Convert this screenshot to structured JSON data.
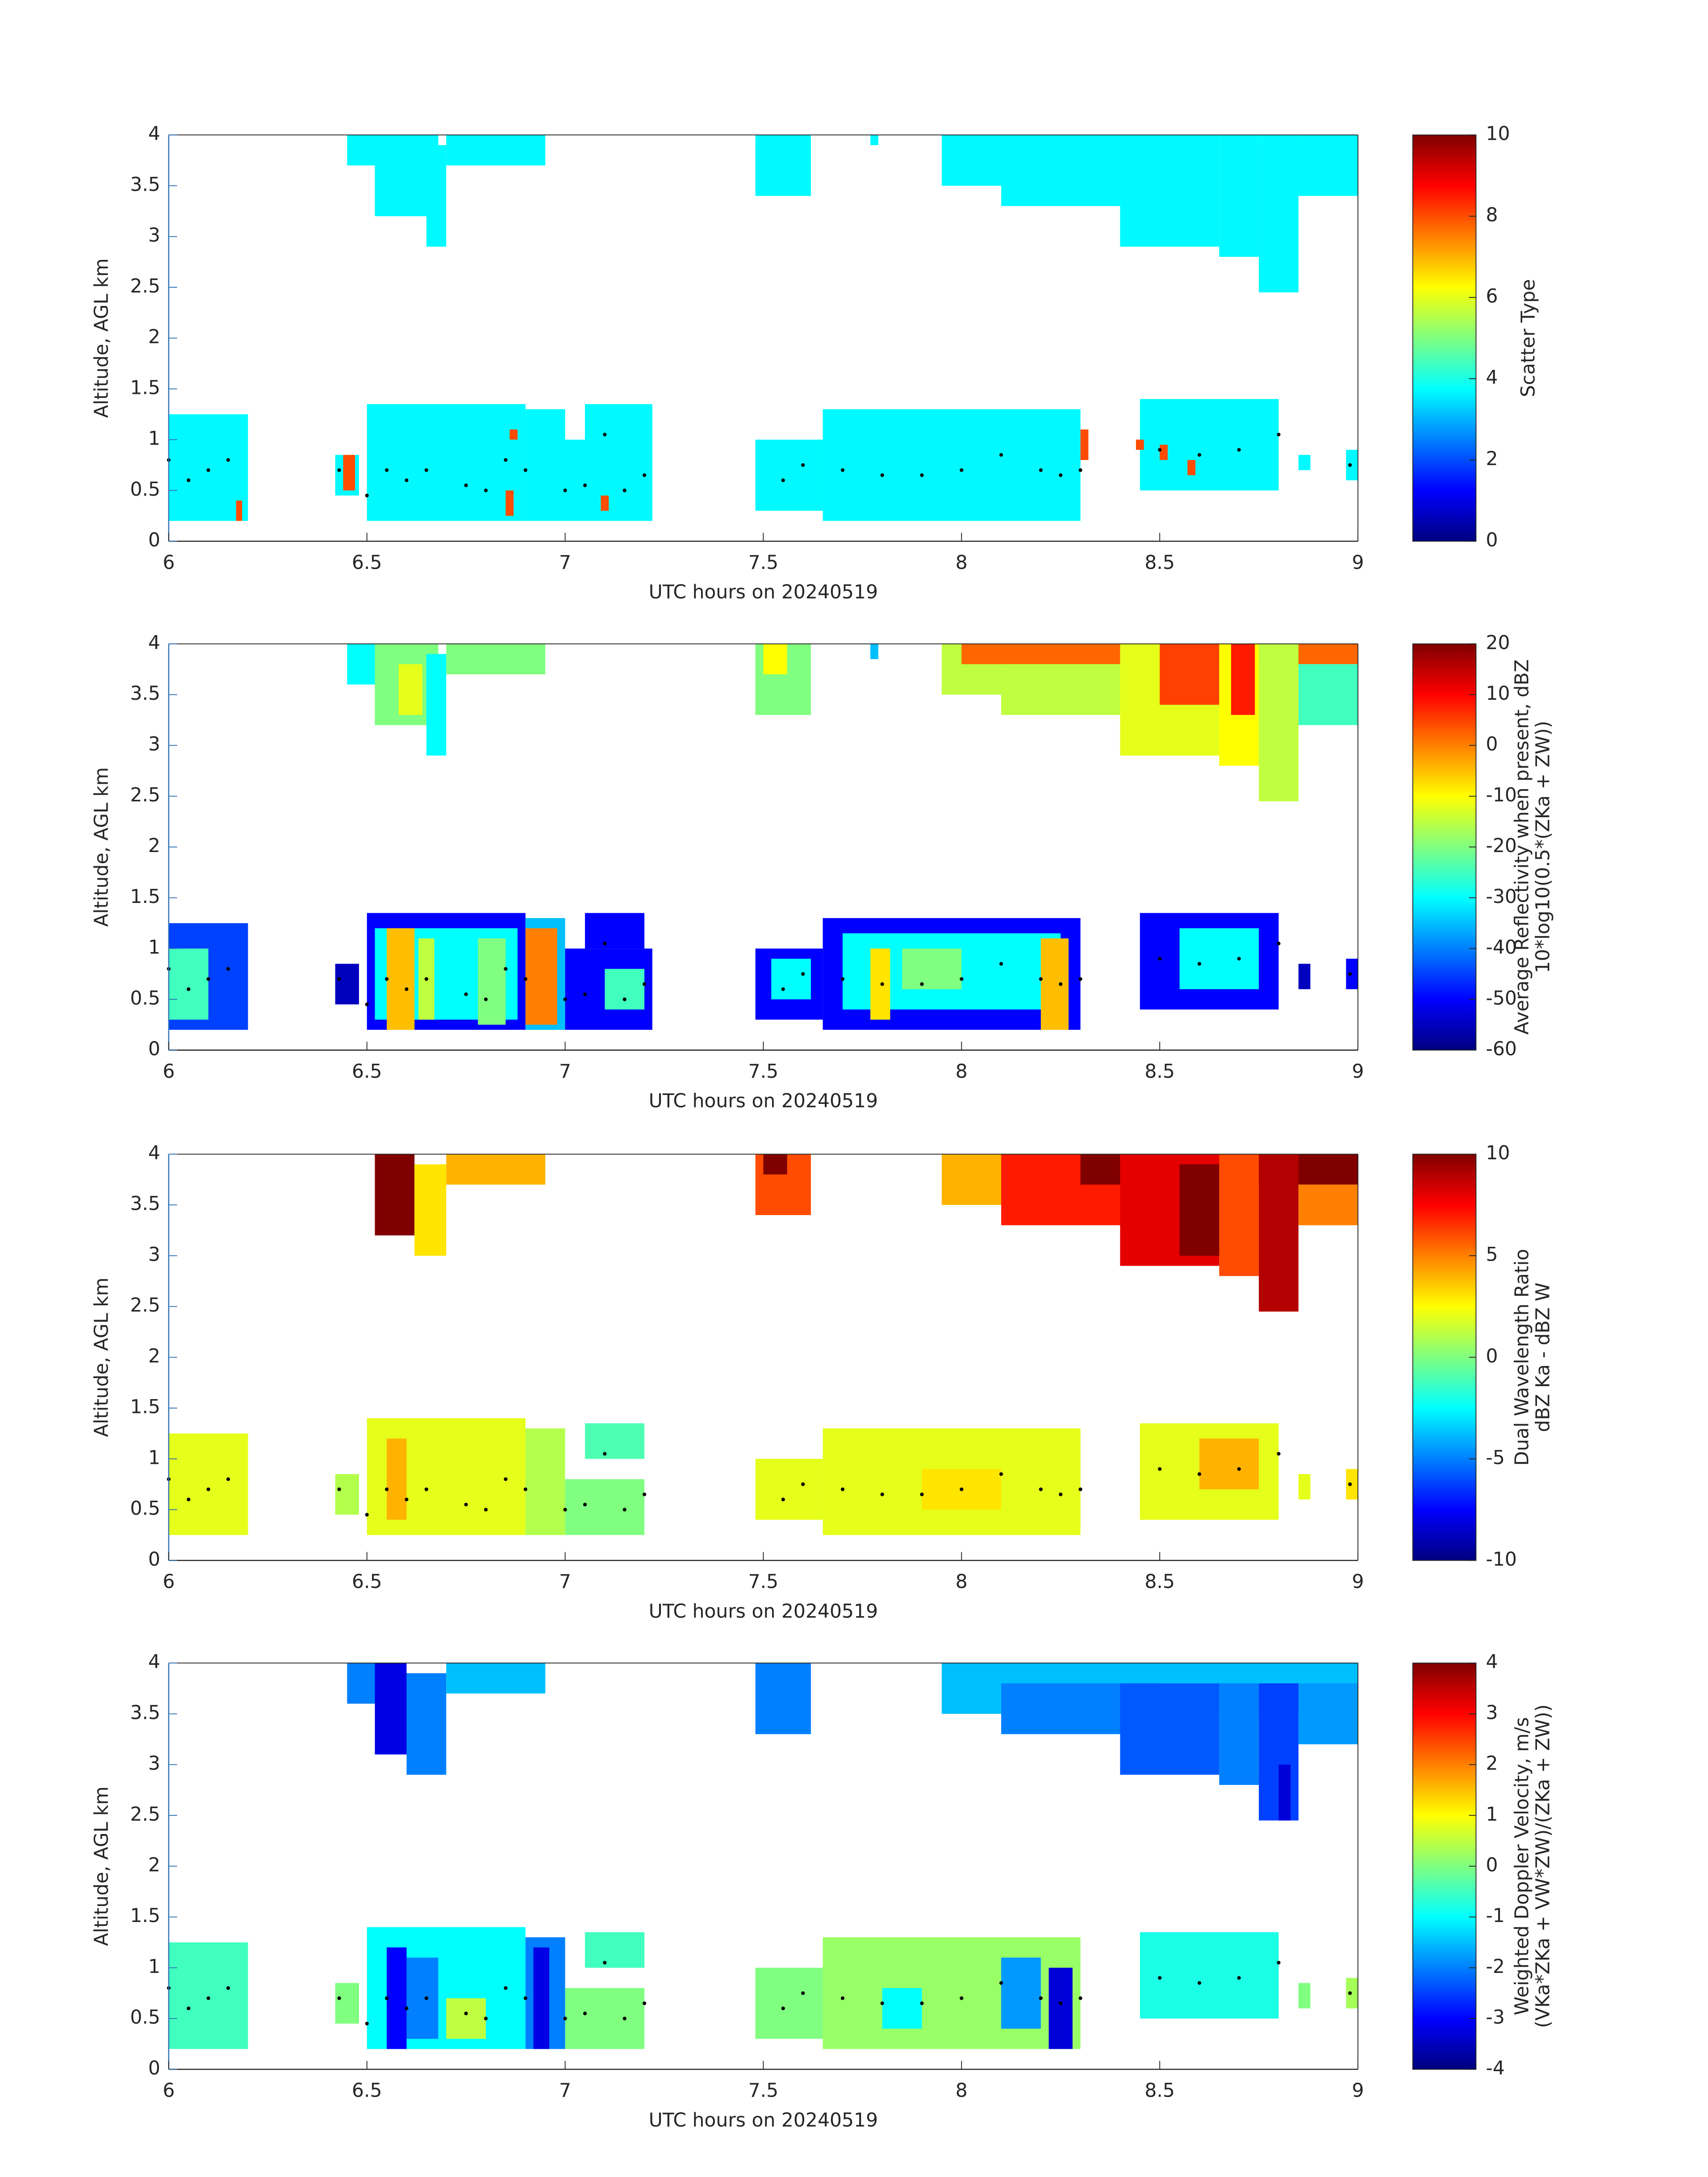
{
  "chart_data": [
    {
      "type": "heatmap",
      "xlabel": "UTC hours on 20240519",
      "ylabel": "Altitude, AGL km",
      "colorbar_label": [
        "Scatter Type"
      ],
      "colormap": "jet",
      "clim": [
        0,
        10
      ],
      "cticks": [
        0,
        2,
        4,
        6,
        8,
        10
      ],
      "xlim": [
        6,
        9
      ],
      "xticks": [
        6,
        6.5,
        7,
        7.5,
        8,
        8.5,
        9
      ],
      "ylim": [
        0,
        4
      ],
      "yticks": [
        0,
        0.5,
        1,
        1.5,
        2,
        2.5,
        3,
        3.5,
        4
      ],
      "regions": [
        [
          6.45,
          6.55,
          3.7,
          4,
          3.7
        ],
        [
          6.52,
          6.68,
          3.2,
          4,
          3.7
        ],
        [
          6.65,
          6.7,
          2.9,
          3.9,
          3.7
        ],
        [
          6.7,
          6.95,
          3.7,
          4,
          3.7
        ],
        [
          7.48,
          7.62,
          3.4,
          4,
          3.7
        ],
        [
          7.77,
          7.79,
          3.9,
          4,
          3.7
        ],
        [
          7.95,
          8.4,
          3.5,
          4,
          3.7
        ],
        [
          8.1,
          8.5,
          3.3,
          4,
          3.7
        ],
        [
          8.4,
          8.65,
          2.9,
          4,
          3.7
        ],
        [
          8.65,
          8.75,
          2.8,
          4,
          3.7
        ],
        [
          8.75,
          8.85,
          2.45,
          4,
          3.7
        ],
        [
          8.85,
          9,
          3.4,
          4,
          3.7
        ],
        [
          6,
          6.2,
          0.2,
          1.25,
          3.7
        ],
        [
          6.42,
          6.48,
          0.45,
          0.85,
          3.7
        ],
        [
          6.5,
          6.9,
          0.2,
          1.35,
          3.7
        ],
        [
          6.9,
          7,
          0.2,
          1.3,
          3.7
        ],
        [
          7,
          7.22,
          0.2,
          1,
          3.7
        ],
        [
          7.05,
          7.22,
          1,
          1.35,
          3.7
        ],
        [
          7.48,
          7.65,
          0.3,
          1,
          3.7
        ],
        [
          7.65,
          8.3,
          0.2,
          1.3,
          3.7
        ],
        [
          8.45,
          8.8,
          0.5,
          1.4,
          3.7
        ],
        [
          8.85,
          8.88,
          0.7,
          0.85,
          3.7
        ],
        [
          8.97,
          9,
          0.6,
          0.9,
          3.7
        ],
        [
          6.17,
          6.185,
          0.2,
          0.4,
          8
        ],
        [
          6.44,
          6.47,
          0.5,
          0.85,
          8
        ],
        [
          6.85,
          6.87,
          0.25,
          0.5,
          8
        ],
        [
          6.86,
          6.88,
          1,
          1.1,
          8
        ],
        [
          7.09,
          7.11,
          0.3,
          0.45,
          8
        ],
        [
          8.3,
          8.32,
          0.8,
          1.1,
          8
        ],
        [
          8.44,
          8.46,
          0.9,
          1,
          8
        ],
        [
          8.5,
          8.52,
          0.8,
          0.95,
          8
        ],
        [
          8.57,
          8.59,
          0.65,
          0.8,
          8
        ]
      ],
      "points": {
        "x": [
          6,
          6.05,
          6.1,
          6.15,
          6.43,
          6.5,
          6.55,
          6.6,
          6.65,
          6.75,
          6.8,
          6.85,
          6.9,
          7,
          7.05,
          7.1,
          7.15,
          7.2,
          7.55,
          7.6,
          7.7,
          7.8,
          7.9,
          8,
          8.1,
          8.2,
          8.25,
          8.3,
          8.5,
          8.6,
          8.7,
          8.8,
          8.98
        ],
        "values": [
          0.8,
          0.6,
          0.7,
          0.8,
          0.7,
          0.45,
          0.7,
          0.6,
          0.7,
          0.55,
          0.5,
          0.8,
          0.7,
          0.5,
          0.55,
          1.05,
          0.5,
          0.65,
          0.6,
          0.75,
          0.7,
          0.65,
          0.65,
          0.7,
          0.85,
          0.7,
          0.65,
          0.7,
          0.9,
          0.85,
          0.9,
          1.05,
          0.75
        ]
      }
    },
    {
      "type": "heatmap",
      "xlabel": "UTC hours on 20240519",
      "ylabel": "Altitude, AGL km",
      "colorbar_label": [
        "Average Reflectivity when present, dBZ",
        "10*log10(0.5*(ZKa + ZW))"
      ],
      "colormap": "jet",
      "clim": [
        -60,
        20
      ],
      "cticks": [
        -60,
        -50,
        -40,
        -30,
        -20,
        -10,
        0,
        10,
        20
      ],
      "xlim": [
        6,
        9
      ],
      "xticks": [
        6,
        6.5,
        7,
        7.5,
        8,
        8.5,
        9
      ],
      "ylim": [
        0,
        4
      ],
      "yticks": [
        0,
        0.5,
        1,
        1.5,
        2,
        2.5,
        3,
        3.5,
        4
      ],
      "regions": [
        [
          6.45,
          6.55,
          3.6,
          4,
          -30
        ],
        [
          6.52,
          6.68,
          3.2,
          4,
          -20
        ],
        [
          6.58,
          6.64,
          3.3,
          3.8,
          -12
        ],
        [
          6.65,
          6.7,
          2.9,
          3.9,
          -30
        ],
        [
          6.7,
          6.95,
          3.7,
          4,
          -20
        ],
        [
          7.48,
          7.62,
          3.3,
          4,
          -20
        ],
        [
          7.5,
          7.56,
          3.7,
          4,
          -10
        ],
        [
          7.77,
          7.79,
          3.85,
          4,
          -35
        ],
        [
          7.95,
          8.4,
          3.5,
          4,
          -15
        ],
        [
          8,
          9,
          3.8,
          4,
          2
        ],
        [
          8.1,
          8.5,
          3.3,
          3.8,
          -15
        ],
        [
          8.4,
          8.65,
          2.9,
          4,
          -12
        ],
        [
          8.5,
          8.65,
          3.4,
          4,
          5
        ],
        [
          8.65,
          8.75,
          2.8,
          4,
          -10
        ],
        [
          8.68,
          8.74,
          3.3,
          4,
          8
        ],
        [
          8.75,
          8.85,
          2.45,
          4,
          -15
        ],
        [
          8.85,
          9,
          3.2,
          3.8,
          -25
        ],
        [
          6,
          6.2,
          0.2,
          1.25,
          -45
        ],
        [
          6,
          6.1,
          0.3,
          1,
          -25
        ],
        [
          6.42,
          6.48,
          0.45,
          0.85,
          -55
        ],
        [
          6.5,
          6.9,
          0.2,
          1.35,
          -50
        ],
        [
          6.52,
          6.88,
          0.3,
          1.2,
          -30
        ],
        [
          6.55,
          6.62,
          0.2,
          1.2,
          -5
        ],
        [
          6.63,
          6.67,
          0.3,
          1.1,
          -15
        ],
        [
          6.78,
          6.85,
          0.25,
          1.1,
          -20
        ],
        [
          6.9,
          7,
          0.2,
          1.3,
          -35
        ],
        [
          6.9,
          6.98,
          0.25,
          1.2,
          0
        ],
        [
          7,
          7.22,
          0.2,
          1,
          -50
        ],
        [
          7.05,
          7.2,
          1,
          1.35,
          -50
        ],
        [
          7.1,
          7.2,
          0.4,
          0.8,
          -25
        ],
        [
          7.48,
          7.65,
          0.3,
          1,
          -50
        ],
        [
          7.52,
          7.62,
          0.5,
          0.9,
          -30
        ],
        [
          7.65,
          8.3,
          0.2,
          1.3,
          -50
        ],
        [
          7.7,
          8.25,
          0.4,
          1.15,
          -30
        ],
        [
          7.77,
          7.82,
          0.3,
          1,
          -8
        ],
        [
          7.85,
          8,
          0.6,
          1,
          -20
        ],
        [
          8.2,
          8.27,
          0.2,
          1.1,
          -5
        ],
        [
          8.45,
          8.8,
          0.4,
          1.35,
          -50
        ],
        [
          8.55,
          8.75,
          0.6,
          1.2,
          -30
        ],
        [
          8.85,
          8.88,
          0.6,
          0.85,
          -55
        ],
        [
          8.97,
          9,
          0.6,
          0.9,
          -50
        ]
      ],
      "points": {
        "x": [
          6,
          6.05,
          6.1,
          6.15,
          6.43,
          6.5,
          6.55,
          6.6,
          6.65,
          6.75,
          6.8,
          6.85,
          6.9,
          7,
          7.05,
          7.1,
          7.15,
          7.2,
          7.55,
          7.6,
          7.7,
          7.8,
          7.9,
          8,
          8.1,
          8.2,
          8.25,
          8.3,
          8.5,
          8.6,
          8.7,
          8.8,
          8.98
        ],
        "values": [
          0.8,
          0.6,
          0.7,
          0.8,
          0.7,
          0.45,
          0.7,
          0.6,
          0.7,
          0.55,
          0.5,
          0.8,
          0.7,
          0.5,
          0.55,
          1.05,
          0.5,
          0.65,
          0.6,
          0.75,
          0.7,
          0.65,
          0.65,
          0.7,
          0.85,
          0.7,
          0.65,
          0.7,
          0.9,
          0.85,
          0.9,
          1.05,
          0.75
        ]
      }
    },
    {
      "type": "heatmap",
      "xlabel": "UTC hours on 20240519",
      "ylabel": "Altitude, AGL km",
      "colorbar_label": [
        "Dual Wavelength Ratio",
        "dBZ Ka - dBZ W"
      ],
      "colormap": "jet",
      "clim": [
        -10,
        10
      ],
      "cticks": [
        -10,
        -5,
        0,
        5,
        10
      ],
      "xlim": [
        6,
        9
      ],
      "xticks": [
        6,
        6.5,
        7,
        7.5,
        8,
        8.5,
        9
      ],
      "ylim": [
        0,
        4
      ],
      "yticks": [
        0,
        0.5,
        1,
        1.5,
        2,
        2.5,
        3,
        3.5,
        4
      ],
      "regions": [
        [
          6.52,
          6.62,
          3.2,
          4,
          10
        ],
        [
          6.62,
          6.7,
          3,
          3.9,
          3
        ],
        [
          6.7,
          6.95,
          3.7,
          4,
          4
        ],
        [
          7.48,
          7.62,
          3.4,
          4,
          6
        ],
        [
          7.5,
          7.56,
          3.8,
          4,
          10
        ],
        [
          7.95,
          8.4,
          3.5,
          4,
          4
        ],
        [
          8.1,
          8.5,
          3.3,
          4,
          7
        ],
        [
          8.3,
          9,
          3.7,
          4,
          10
        ],
        [
          8.4,
          8.65,
          2.9,
          4,
          8
        ],
        [
          8.55,
          8.7,
          3,
          3.9,
          10
        ],
        [
          8.65,
          8.75,
          2.8,
          4,
          6
        ],
        [
          8.75,
          8.85,
          2.45,
          4,
          9
        ],
        [
          8.85,
          9,
          3.3,
          3.7,
          5
        ],
        [
          6,
          6.2,
          0.25,
          1.25,
          2
        ],
        [
          6.42,
          6.48,
          0.45,
          0.85,
          1
        ],
        [
          6.5,
          6.9,
          0.25,
          1.4,
          2
        ],
        [
          6.55,
          6.6,
          0.4,
          1.2,
          4
        ],
        [
          6.9,
          7,
          0.25,
          1.3,
          1
        ],
        [
          7,
          7.2,
          0.25,
          0.8,
          0
        ],
        [
          7.05,
          7.2,
          1,
          1.35,
          -1
        ],
        [
          7.48,
          7.65,
          0.4,
          1,
          2
        ],
        [
          7.65,
          8.3,
          0.25,
          1.3,
          2
        ],
        [
          7.9,
          8.1,
          0.5,
          0.9,
          3
        ],
        [
          8.45,
          8.8,
          0.4,
          1.35,
          2
        ],
        [
          8.6,
          8.75,
          0.7,
          1.2,
          4
        ],
        [
          8.85,
          8.88,
          0.6,
          0.85,
          2
        ],
        [
          8.97,
          9,
          0.6,
          0.9,
          3
        ]
      ],
      "points": {
        "x": [
          6,
          6.05,
          6.1,
          6.15,
          6.43,
          6.5,
          6.55,
          6.6,
          6.65,
          6.75,
          6.8,
          6.85,
          6.9,
          7,
          7.05,
          7.1,
          7.15,
          7.2,
          7.55,
          7.6,
          7.7,
          7.8,
          7.9,
          8,
          8.1,
          8.2,
          8.25,
          8.3,
          8.5,
          8.6,
          8.7,
          8.8,
          8.98
        ],
        "values": [
          0.8,
          0.6,
          0.7,
          0.8,
          0.7,
          0.45,
          0.7,
          0.6,
          0.7,
          0.55,
          0.5,
          0.8,
          0.7,
          0.5,
          0.55,
          1.05,
          0.5,
          0.65,
          0.6,
          0.75,
          0.7,
          0.65,
          0.65,
          0.7,
          0.85,
          0.7,
          0.65,
          0.7,
          0.9,
          0.85,
          0.9,
          1.05,
          0.75
        ]
      }
    },
    {
      "type": "heatmap",
      "xlabel": "UTC hours on 20240519",
      "ylabel": "Altitude, AGL km",
      "colorbar_label": [
        "Weighted Doppler Velocity, m/s",
        "(VKa*ZKa + VW*ZW)/(ZKa + ZW))"
      ],
      "colormap": "jet",
      "clim": [
        -4,
        4
      ],
      "cticks": [
        -4,
        -3,
        -2,
        -1,
        0,
        1,
        2,
        3,
        4
      ],
      "xlim": [
        6,
        9
      ],
      "xticks": [
        6,
        6.5,
        7,
        7.5,
        8,
        8.5,
        9
      ],
      "ylim": [
        0,
        4
      ],
      "yticks": [
        0,
        0.5,
        1,
        1.5,
        2,
        2.5,
        3,
        3.5,
        4
      ],
      "regions": [
        [
          6.45,
          6.55,
          3.6,
          4,
          -2
        ],
        [
          6.52,
          6.6,
          3.1,
          4,
          -3.2
        ],
        [
          6.6,
          6.7,
          2.9,
          3.9,
          -2
        ],
        [
          6.7,
          6.95,
          3.7,
          4,
          -1.5
        ],
        [
          7.48,
          7.62,
          3.3,
          4,
          -2
        ],
        [
          7.95,
          9,
          3.5,
          4,
          -1.5
        ],
        [
          8.1,
          8.5,
          3.3,
          3.8,
          -2
        ],
        [
          8.4,
          8.65,
          2.9,
          3.8,
          -2.3
        ],
        [
          8.65,
          8.75,
          2.8,
          3.8,
          -2
        ],
        [
          8.75,
          8.85,
          2.45,
          3.8,
          -2.5
        ],
        [
          8.8,
          8.83,
          2.45,
          3,
          -3.3
        ],
        [
          8.85,
          9,
          3.2,
          3.8,
          -1.8
        ],
        [
          6,
          6.2,
          0.2,
          1.25,
          -0.5
        ],
        [
          6.42,
          6.48,
          0.45,
          0.85,
          0
        ],
        [
          6.5,
          6.9,
          0.2,
          1.4,
          -1
        ],
        [
          6.55,
          6.6,
          0.2,
          1.2,
          -3
        ],
        [
          6.6,
          6.68,
          0.3,
          1.1,
          -2
        ],
        [
          6.7,
          6.8,
          0.3,
          0.7,
          0.5
        ],
        [
          6.9,
          7,
          0.2,
          1.3,
          -2
        ],
        [
          6.92,
          6.96,
          0.2,
          1.2,
          -3.2
        ],
        [
          7,
          7.2,
          0.2,
          0.8,
          0
        ],
        [
          7.05,
          7.2,
          1,
          1.35,
          -0.5
        ],
        [
          7.48,
          7.65,
          0.3,
          1,
          0
        ],
        [
          7.65,
          8.3,
          0.2,
          1.3,
          0.2
        ],
        [
          7.8,
          7.9,
          0.4,
          0.8,
          -1
        ],
        [
          8.1,
          8.2,
          0.4,
          1.1,
          -1.8
        ],
        [
          8.22,
          8.28,
          0.2,
          1,
          -3.3
        ],
        [
          8.45,
          8.8,
          0.5,
          1.35,
          -0.8
        ],
        [
          8.85,
          8.88,
          0.6,
          0.85,
          0
        ],
        [
          8.97,
          9,
          0.6,
          0.9,
          0.3
        ]
      ],
      "points": {
        "x": [
          6,
          6.05,
          6.1,
          6.15,
          6.43,
          6.5,
          6.55,
          6.6,
          6.65,
          6.75,
          6.8,
          6.85,
          6.9,
          7,
          7.05,
          7.1,
          7.15,
          7.2,
          7.55,
          7.6,
          7.7,
          7.8,
          7.9,
          8,
          8.1,
          8.2,
          8.25,
          8.3,
          8.5,
          8.6,
          8.7,
          8.8,
          8.98
        ],
        "values": [
          0.8,
          0.6,
          0.7,
          0.8,
          0.7,
          0.45,
          0.7,
          0.6,
          0.7,
          0.55,
          0.5,
          0.8,
          0.7,
          0.5,
          0.55,
          1.05,
          0.5,
          0.65,
          0.6,
          0.75,
          0.7,
          0.65,
          0.65,
          0.7,
          0.85,
          0.7,
          0.65,
          0.7,
          0.9,
          0.85,
          0.9,
          1.05,
          0.75
        ]
      }
    }
  ]
}
